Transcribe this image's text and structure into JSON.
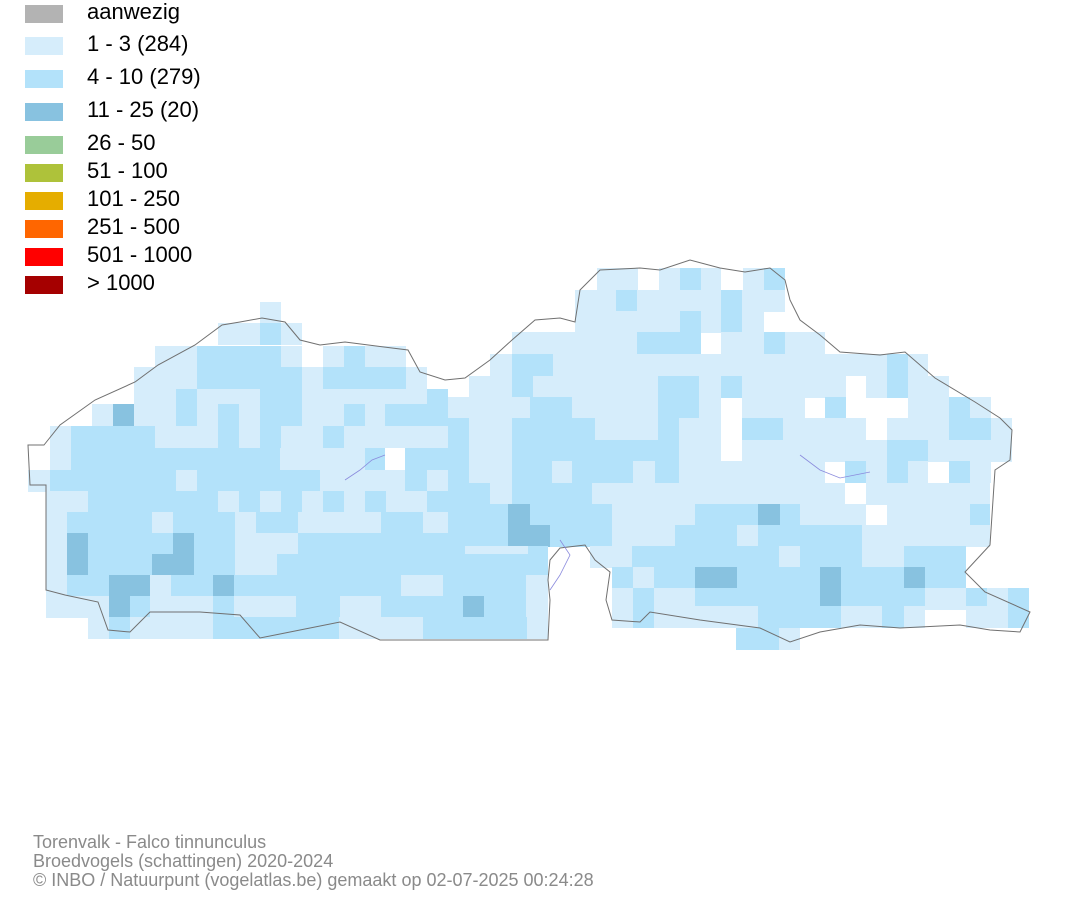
{
  "legend": {
    "items": [
      {
        "label": "aanwezig",
        "color": "#b3b3b3"
      },
      {
        "label": "1 - 3 (284)",
        "color": "#d6edfb"
      },
      {
        "label": "4 - 10 (279)",
        "color": "#b3e2fa"
      },
      {
        "label": "11 - 25 (20)",
        "color": "#88c2e0"
      },
      {
        "label": "26 - 50",
        "color": "#99cc99"
      },
      {
        "label": "51 - 100",
        "color": "#aec23a"
      },
      {
        "label": "101 - 250",
        "color": "#e5ad00"
      },
      {
        "label": "251 - 500",
        "color": "#ff6600"
      },
      {
        "label": "501 - 1000",
        "color": "#ff0000"
      },
      {
        "label": "> 1000",
        "color": "#a50000"
      }
    ]
  },
  "map": {
    "border_color": "#707070",
    "river_color": "#8b8bdd"
  },
  "footer": {
    "species": "Torenvalk - Falco tinnunculus",
    "dataset": "Broedvogels (schattingen) 2020-2024",
    "credit": "© INBO / Natuurpunt (vogelatlas.be) gemaakt op 02-07-2025 00:24:28"
  }
}
